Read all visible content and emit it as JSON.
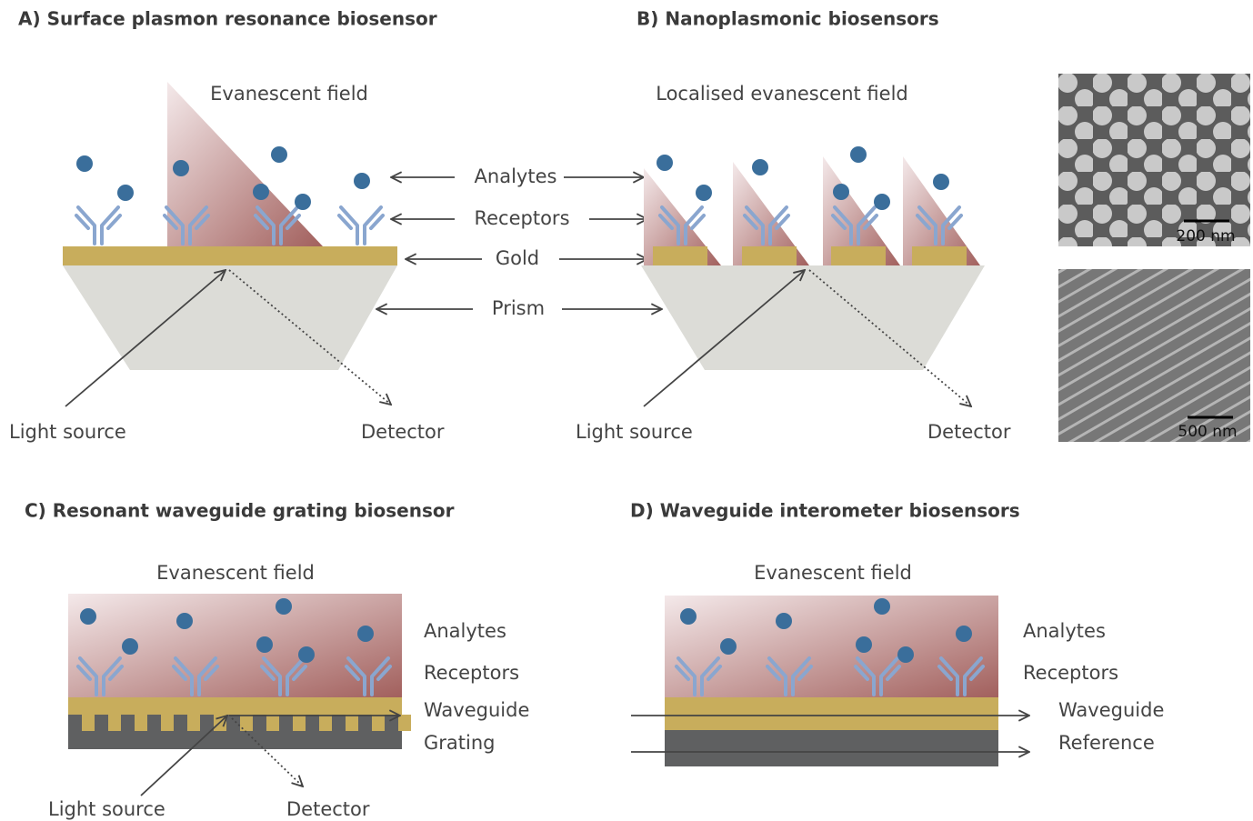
{
  "panels": [
    {
      "title": "A) Surface plasmon resonance biosensor",
      "field": "Evanescent field",
      "light": "Light source",
      "detector": "Detector"
    },
    {
      "title": "B) Nanoplasmonic biosensors",
      "field": "Localised evanescent field",
      "light": "Light source",
      "detector": "Detector",
      "scale_bars": [
        "200 nm",
        "500 nm"
      ]
    },
    {
      "title": "C) Resonant waveguide grating biosensor",
      "field": "Evanescent field",
      "labels": [
        "Analytes",
        "Receptors",
        "Waveguide",
        "Grating"
      ],
      "light": "Light source",
      "detector": "Detector"
    },
    {
      "title": "D) Waveguide interometer biosensors",
      "field": "Evanescent field",
      "labels": [
        "Analytes",
        "Receptors",
        "Waveguide",
        "Reference"
      ]
    }
  ],
  "shared_labels": [
    "Analytes",
    "Receptors",
    "Gold",
    "Prism"
  ]
}
